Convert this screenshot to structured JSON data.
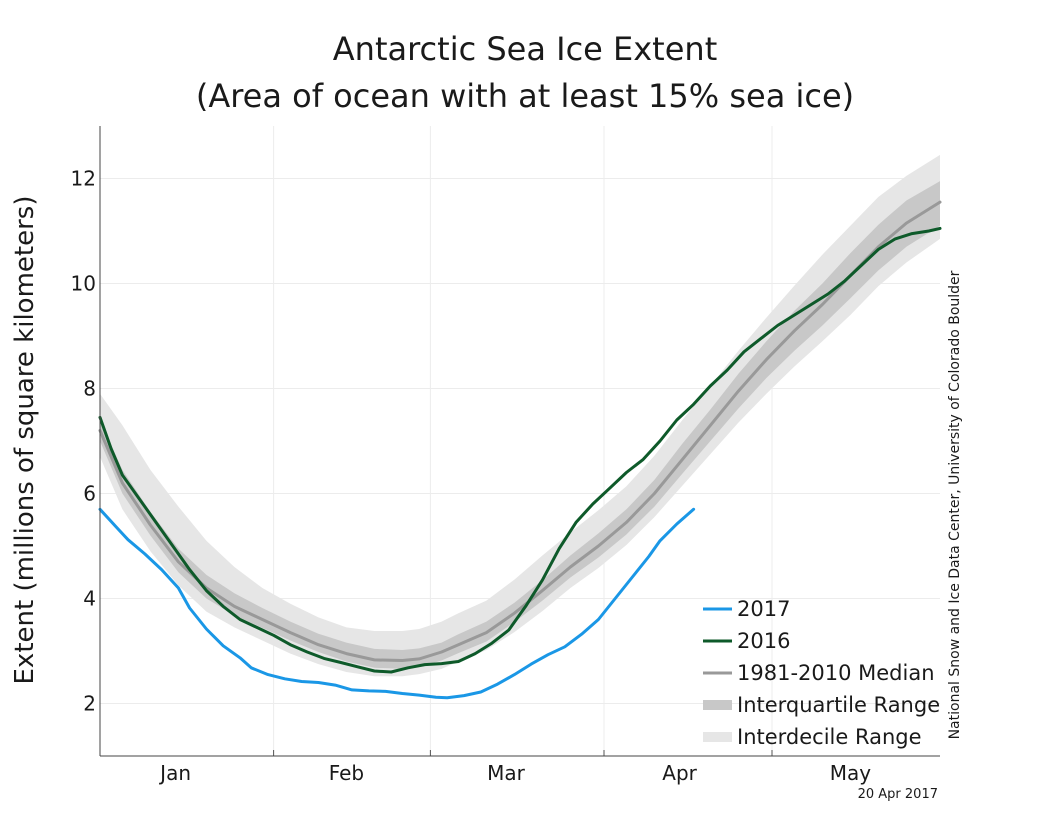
{
  "chart_data": {
    "type": "line",
    "title": "Antarctic Sea Ice Extent",
    "subtitle": "(Area of ocean with at least 15% sea ice)",
    "ylabel": "Extent (millions of square kilometers)",
    "xlabel": "",
    "ylim": [
      1,
      13
    ],
    "xlim_day": [
      1,
      151
    ],
    "yticks": [
      2,
      4,
      6,
      8,
      10,
      12
    ],
    "month_labels": [
      {
        "label": "Jan",
        "day": 14.5
      },
      {
        "label": "Feb",
        "day": 45
      },
      {
        "label": "Mar",
        "day": 73.5
      },
      {
        "label": "Apr",
        "day": 104.5
      },
      {
        "label": "May",
        "day": 135
      }
    ],
    "month_boundaries": [
      32,
      60,
      91,
      121
    ],
    "grid": true,
    "legend_position": "bottom-right",
    "series": [
      {
        "name": "2017",
        "kind": "line",
        "color": "#1a97e6",
        "x": [
          1,
          4,
          6,
          9,
          12,
          15,
          17,
          20,
          23,
          26,
          28,
          31,
          34,
          37,
          40,
          43,
          46,
          49,
          52,
          55,
          58,
          61,
          63,
          66,
          69,
          72,
          75,
          78,
          81,
          84,
          87,
          90,
          93,
          96,
          99,
          101,
          104,
          107
        ],
        "values": [
          5.7,
          5.35,
          5.12,
          4.85,
          4.55,
          4.2,
          3.82,
          3.42,
          3.1,
          2.87,
          2.68,
          2.55,
          2.47,
          2.42,
          2.4,
          2.35,
          2.26,
          2.24,
          2.23,
          2.19,
          2.16,
          2.12,
          2.11,
          2.15,
          2.22,
          2.37,
          2.55,
          2.75,
          2.93,
          3.08,
          3.32,
          3.6,
          4.0,
          4.4,
          4.8,
          5.1,
          5.42,
          5.7
        ]
      },
      {
        "name": "2016",
        "kind": "line",
        "color": "#0e5a2a",
        "x": [
          1,
          3,
          5,
          8,
          11,
          14,
          17,
          20,
          23,
          26,
          29,
          32,
          35,
          38,
          41,
          44,
          47,
          50,
          53,
          56,
          59,
          62,
          65,
          68,
          71,
          74,
          77,
          80,
          83,
          86,
          89,
          92,
          95,
          98,
          101,
          104,
          107,
          110,
          113,
          116,
          119,
          122,
          125,
          128,
          131,
          134,
          137,
          140,
          143,
          146,
          149,
          151
        ],
        "values": [
          7.45,
          6.85,
          6.35,
          5.9,
          5.45,
          5.0,
          4.55,
          4.15,
          3.85,
          3.6,
          3.45,
          3.3,
          3.12,
          2.98,
          2.86,
          2.78,
          2.7,
          2.62,
          2.6,
          2.68,
          2.74,
          2.76,
          2.8,
          2.95,
          3.15,
          3.4,
          3.85,
          4.35,
          4.95,
          5.45,
          5.8,
          6.1,
          6.4,
          6.65,
          7.0,
          7.4,
          7.7,
          8.05,
          8.35,
          8.7,
          8.95,
          9.2,
          9.4,
          9.6,
          9.8,
          10.05,
          10.35,
          10.65,
          10.85,
          10.95,
          11.0,
          11.05
        ]
      },
      {
        "name": "1981-2010 Median",
        "kind": "line",
        "color": "#999999",
        "x": [
          1,
          5,
          10,
          15,
          20,
          25,
          30,
          35,
          40,
          45,
          50,
          55,
          58,
          62,
          65,
          70,
          75,
          80,
          85,
          90,
          95,
          100,
          105,
          110,
          115,
          120,
          125,
          130,
          135,
          140,
          145,
          151
        ],
        "values": [
          7.2,
          6.2,
          5.4,
          4.7,
          4.2,
          3.85,
          3.6,
          3.35,
          3.12,
          2.95,
          2.83,
          2.82,
          2.85,
          2.98,
          3.12,
          3.35,
          3.72,
          4.15,
          4.6,
          5.0,
          5.45,
          6.0,
          6.65,
          7.3,
          7.95,
          8.55,
          9.1,
          9.6,
          10.15,
          10.7,
          11.15,
          11.55
        ]
      },
      {
        "name": "Interquartile Range",
        "kind": "band",
        "color": "#c8c8c8",
        "x": [
          1,
          5,
          10,
          15,
          20,
          25,
          30,
          35,
          40,
          45,
          50,
          55,
          58,
          62,
          65,
          70,
          75,
          80,
          85,
          90,
          95,
          100,
          105,
          110,
          115,
          120,
          125,
          130,
          135,
          140,
          145,
          151
        ],
        "lower": [
          7.0,
          6.0,
          5.2,
          4.5,
          4.0,
          3.68,
          3.44,
          3.2,
          2.98,
          2.8,
          2.68,
          2.66,
          2.7,
          2.82,
          2.96,
          3.18,
          3.55,
          3.96,
          4.4,
          4.78,
          5.22,
          5.75,
          6.38,
          7.0,
          7.62,
          8.2,
          8.72,
          9.2,
          9.72,
          10.25,
          10.7,
          11.1
        ],
        "upper": [
          7.4,
          6.45,
          5.65,
          4.95,
          4.45,
          4.1,
          3.82,
          3.56,
          3.33,
          3.16,
          3.04,
          3.02,
          3.05,
          3.16,
          3.32,
          3.56,
          3.92,
          4.35,
          4.82,
          5.24,
          5.7,
          6.26,
          6.95,
          7.6,
          8.28,
          8.9,
          9.48,
          10.0,
          10.58,
          11.12,
          11.58,
          11.95
        ]
      },
      {
        "name": "Interdecile Range",
        "kind": "band",
        "color": "#e6e6e6",
        "x": [
          1,
          5,
          10,
          15,
          20,
          25,
          30,
          35,
          40,
          45,
          50,
          55,
          58,
          62,
          65,
          70,
          75,
          80,
          85,
          90,
          95,
          100,
          105,
          110,
          115,
          120,
          125,
          130,
          135,
          140,
          145,
          151
        ],
        "lower": [
          6.7,
          5.7,
          4.9,
          4.25,
          3.75,
          3.45,
          3.2,
          2.95,
          2.75,
          2.6,
          2.52,
          2.52,
          2.56,
          2.66,
          2.8,
          3.02,
          3.36,
          3.76,
          4.2,
          4.58,
          5.02,
          5.55,
          6.15,
          6.75,
          7.35,
          7.9,
          8.42,
          8.9,
          9.4,
          9.95,
          10.4,
          10.85
        ],
        "upper": [
          7.9,
          7.3,
          6.45,
          5.75,
          5.1,
          4.6,
          4.2,
          3.9,
          3.64,
          3.45,
          3.38,
          3.38,
          3.42,
          3.56,
          3.72,
          3.96,
          4.36,
          4.82,
          5.26,
          5.68,
          6.14,
          6.72,
          7.4,
          8.05,
          8.72,
          9.35,
          9.96,
          10.55,
          11.1,
          11.65,
          12.05,
          12.45
        ]
      }
    ]
  },
  "credit": "National Snow and Ice Data Center, University of Colorado Boulder",
  "date_stamp": "20 Apr 2017"
}
